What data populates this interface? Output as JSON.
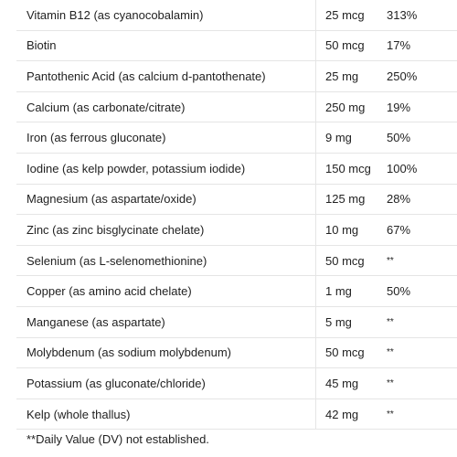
{
  "nutrients": [
    {
      "name": "Vitamin B12 (as cyanocobalamin)",
      "amount": "25 mcg",
      "dv": "313%"
    },
    {
      "name": "Biotin",
      "amount": "50 mcg",
      "dv": "17%"
    },
    {
      "name": "Pantothenic Acid (as calcium d-pantothenate)",
      "amount": "25 mg",
      "dv": "250%"
    },
    {
      "name": "Calcium (as carbonate/citrate)",
      "amount": "250 mg",
      "dv": "19%"
    },
    {
      "name": "Iron (as ferrous gluconate)",
      "amount": "9 mg",
      "dv": "50%"
    },
    {
      "name": "Iodine (as kelp powder, potassium iodide)",
      "amount": "150 mcg",
      "dv": "100%"
    },
    {
      "name": "Magnesium (as aspartate/oxide)",
      "amount": "125 mg",
      "dv": "28%"
    },
    {
      "name": "Zinc (as zinc bisglycinate chelate)",
      "amount": "10 mg",
      "dv": "67%"
    },
    {
      "name": "Selenium (as L-selenomethionine)",
      "amount": "50 mcg",
      "dv": "**"
    },
    {
      "name": "Copper (as amino acid chelate)",
      "amount": "1 mg",
      "dv": "50%"
    },
    {
      "name": "Manganese (as aspartate)",
      "amount": "5 mg",
      "dv": "**"
    },
    {
      "name": "Molybdenum (as sodium molybdenum)",
      "amount": "50 mcg",
      "dv": "**"
    },
    {
      "name": "Potassium (as gluconate/chloride)",
      "amount": "45 mg",
      "dv": "**"
    },
    {
      "name": "Kelp (whole thallus)",
      "amount": "42 mg",
      "dv": "**"
    }
  ],
  "footnote": "**Daily Value (DV) not established."
}
